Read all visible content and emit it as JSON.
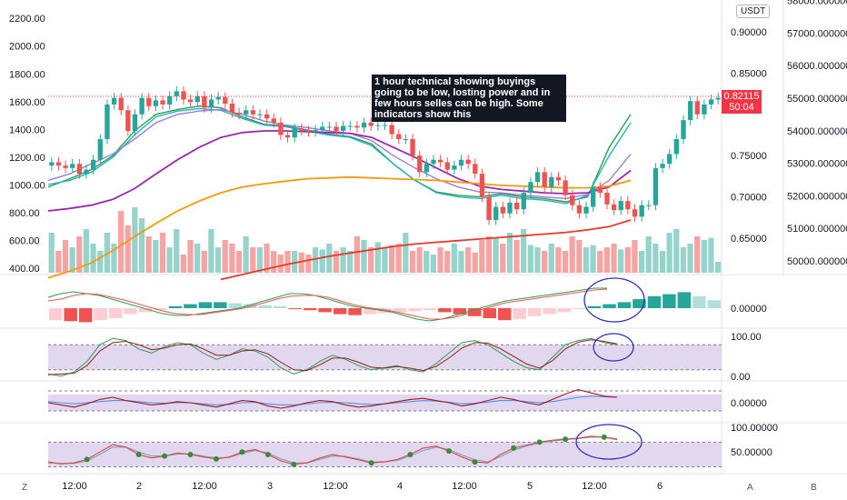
{
  "annotation": {
    "text": "1 hour technical showing buyings going to be low, losting power and in few hours selles can be high. Some indicators show this"
  },
  "currency_badge": "USDT",
  "last_price": {
    "value": "0.82115",
    "countdown": "50:04"
  },
  "bottom_bar": {
    "left_btn": "Z",
    "right_btn_a": "A",
    "right_btn_b": "B"
  },
  "colors": {
    "up": "#26a69a",
    "down": "#ef5350",
    "vol_up": "#95d3cb",
    "vol_down": "#f5a3a3",
    "ma_green": "#2e9e50",
    "ma_cyan": "#22b3c4",
    "ma_lilac": "#9c7cd6",
    "ma_purple": "#9c27b0",
    "ma_orange": "#f59a0c",
    "ma_red": "#e53a2a",
    "band_fill": "#e1d7ee",
    "circle": "#2f2fb8"
  },
  "chart_data": [
    {
      "type": "line",
      "subtype": "candlestick",
      "title": "",
      "x_ticks": [
        "12:00",
        "2",
        "12:00",
        "3",
        "12:00",
        "4",
        "12:00",
        "5",
        "12:00",
        "6"
      ],
      "left_axis": {
        "ticks": [
          400,
          600,
          800,
          1000,
          1200,
          1400,
          1600,
          1800,
          2000,
          2200
        ],
        "labels": [
          "400.00",
          "600.00",
          "800.00",
          "1000.00",
          "1200.00",
          "1400.00",
          "1600.00",
          "1800.00",
          "2000.00",
          "2200.00"
        ],
        "range": [
          380,
          2280
        ]
      },
      "right_axis_price": {
        "ticks": [
          0.65,
          0.7,
          0.75,
          0.85,
          0.9
        ],
        "labels": [
          "0.65000",
          "0.70000",
          "0.75000",
          "0.85000",
          "0.90000"
        ]
      },
      "right_axis_2": {
        "labels": [
          "50000.000000",
          "51000.000000",
          "52000.000000",
          "53000.000000",
          "54000.000000",
          "55000.000000",
          "56000.000000",
          "57000.000000",
          "58000.000000"
        ]
      },
      "price_series": [
        0.742,
        0.738,
        0.735,
        0.74,
        0.728,
        0.733,
        0.745,
        0.77,
        0.812,
        0.82,
        0.805,
        0.78,
        0.8,
        0.82,
        0.81,
        0.817,
        0.812,
        0.822,
        0.828,
        0.818,
        0.815,
        0.822,
        0.808,
        0.818,
        0.821,
        0.813,
        0.802,
        0.8,
        0.805,
        0.8,
        0.8,
        0.795,
        0.79,
        0.775,
        0.772,
        0.783,
        0.78,
        0.779,
        0.781,
        0.785,
        0.785,
        0.78,
        0.786,
        0.786,
        0.784,
        0.79,
        0.786,
        0.787,
        0.787,
        0.776,
        0.77,
        0.77,
        0.75,
        0.73,
        0.74,
        0.745,
        0.742,
        0.733,
        0.738,
        0.745,
        0.74,
        0.728,
        0.7,
        0.672,
        0.688,
        0.68,
        0.693,
        0.685,
        0.705,
        0.718,
        0.73,
        0.712,
        0.724,
        0.72,
        0.702,
        0.69,
        0.68,
        0.688,
        0.712,
        0.705,
        0.691,
        0.684,
        0.695,
        0.685,
        0.676,
        0.69,
        0.69,
        0.735,
        0.74,
        0.752,
        0.77,
        0.793,
        0.816,
        0.8,
        0.812,
        0.818,
        0.82
      ],
      "series": [
        {
          "name": "",
          "values": [
            0.712,
            0.722,
            0.733,
            0.75,
            0.78,
            0.8,
            0.806,
            0.81,
            0.808,
            0.797,
            0.788,
            0.786,
            0.781,
            0.776,
            0.773,
            0.764,
            0.74,
            0.72,
            0.706,
            0.702,
            0.7,
            0.704,
            0.7,
            0.698,
            0.694,
            0.7,
            0.76,
            0.8
          ]
        },
        {
          "name": "",
          "values": [
            0.715,
            0.72,
            0.73,
            0.748,
            0.775,
            0.797,
            0.804,
            0.807,
            0.805,
            0.795,
            0.787,
            0.785,
            0.78,
            0.775,
            0.772,
            0.762,
            0.74,
            0.72,
            0.705,
            0.7,
            0.698,
            0.702,
            0.698,
            0.696,
            0.692,
            0.702,
            0.75,
            0.79
          ]
        },
        {
          "name": "",
          "values": [
            0.72,
            0.728,
            0.74,
            0.752,
            0.77,
            0.79,
            0.8,
            0.804,
            0.806,
            0.8,
            0.792,
            0.787,
            0.784,
            0.78,
            0.777,
            0.768,
            0.75,
            0.735,
            0.722,
            0.712,
            0.706,
            0.705,
            0.702,
            0.7,
            0.698,
            0.703,
            0.72,
            0.752
          ]
        },
        {
          "name": "",
          "values": [
            0.683,
            0.686,
            0.69,
            0.697,
            0.71,
            0.728,
            0.745,
            0.76,
            0.772,
            0.778,
            0.78,
            0.78,
            0.779,
            0.778,
            0.777,
            0.772,
            0.76,
            0.748,
            0.735,
            0.722,
            0.713,
            0.709,
            0.707,
            0.705,
            0.704,
            0.705,
            0.712,
            0.732
          ]
        },
        {
          "name": "",
          "values": [
            0.602,
            0.61,
            0.62,
            0.635,
            0.652,
            0.668,
            0.683,
            0.695,
            0.705,
            0.712,
            0.716,
            0.719,
            0.722,
            0.723,
            0.724,
            0.723,
            0.722,
            0.721,
            0.72,
            0.718,
            0.716,
            0.714,
            0.713,
            0.712,
            0.711,
            0.711,
            0.713,
            0.72
          ]
        },
        {
          "name": "",
          "values": [
            null,
            null,
            null,
            null,
            null,
            null,
            null,
            null,
            0.6,
            0.606,
            0.612,
            0.618,
            0.623,
            0.628,
            0.632,
            0.636,
            0.64,
            0.643,
            0.645,
            0.647,
            0.649,
            0.651,
            0.653,
            0.655,
            0.657,
            0.66,
            0.664,
            0.672
          ]
        }
      ],
      "volume": [
        0.55,
        0.3,
        0.45,
        0.35,
        0.5,
        0.6,
        0.4,
        0.3,
        0.55,
        0.4,
        0.85,
        0.65,
        0.9,
        0.75,
        0.5,
        0.45,
        0.55,
        0.35,
        0.6,
        0.25,
        0.45,
        0.4,
        0.3,
        0.6,
        0.35,
        0.45,
        0.4,
        0.3,
        0.5,
        0.35,
        0.35,
        0.4,
        0.3,
        0.25,
        0.3,
        0.3,
        0.28,
        0.25,
        0.35,
        0.32,
        0.4,
        0.3,
        0.35,
        0.3,
        0.5,
        0.45,
        0.35,
        0.42,
        0.35,
        0.38,
        0.4,
        0.55,
        0.3,
        0.35,
        0.3,
        0.25,
        0.35,
        0.3,
        0.4,
        0.3,
        0.35,
        0.28,
        0.45,
        0.5,
        0.48,
        0.4,
        0.55,
        0.45,
        0.6,
        0.38,
        0.35,
        0.3,
        0.4,
        0.35,
        0.3,
        0.5,
        0.45,
        0.35,
        0.38,
        0.3,
        0.35,
        0.4,
        0.32,
        0.35,
        0.45,
        0.3,
        0.5,
        0.4,
        0.3,
        0.55,
        0.6,
        0.35,
        0.4,
        0.5,
        0.45,
        0.48,
        0.15
      ]
    },
    {
      "type": "bar",
      "subtype": "histogram",
      "title": "",
      "axis_labels": [
        "0.00000"
      ],
      "values": [
        -0.6,
        -0.65,
        -0.7,
        -0.6,
        -0.5,
        -0.3,
        -0.2,
        -0.1,
        0.1,
        0.2,
        0.3,
        0.3,
        0.25,
        0.2,
        0.15,
        0.1,
        -0.05,
        -0.1,
        -0.2,
        -0.3,
        -0.35,
        -0.3,
        -0.25,
        -0.2,
        -0.15,
        -0.1,
        -0.2,
        -0.3,
        -0.4,
        -0.5,
        -0.6,
        -0.55,
        -0.4,
        -0.3,
        -0.2,
        -0.05,
        0.1,
        0.2,
        0.3,
        0.45,
        0.6,
        0.7,
        0.8,
        0.6,
        0.4
      ]
    },
    {
      "type": "line",
      "title": "",
      "axis_labels": [
        "100.00",
        "0.00"
      ],
      "ylim": [
        0,
        100
      ],
      "band": [
        20,
        80
      ],
      "series": [
        {
          "name": "",
          "values": [
            10,
            5,
            15,
            40,
            80,
            95,
            90,
            70,
            60,
            75,
            85,
            80,
            60,
            45,
            55,
            70,
            65,
            50,
            25,
            10,
            20,
            40,
            55,
            45,
            30,
            20,
            25,
            30,
            20,
            15,
            35,
            60,
            85,
            90,
            80,
            60,
            40,
            25,
            20,
            50,
            80,
            90,
            95,
            85,
            80
          ]
        },
        {
          "name": "",
          "values": [
            8,
            10,
            12,
            30,
            65,
            85,
            88,
            80,
            68,
            72,
            80,
            82,
            70,
            55,
            55,
            65,
            68,
            58,
            38,
            20,
            18,
            32,
            48,
            48,
            38,
            26,
            24,
            28,
            24,
            18,
            28,
            48,
            72,
            85,
            84,
            70,
            52,
            34,
            24,
            42,
            70,
            86,
            92,
            88,
            82
          ]
        }
      ]
    },
    {
      "type": "line",
      "title": "",
      "axis_labels": [
        "0.00000"
      ],
      "series": [
        {
          "name": "",
          "values": [
            0,
            -0.2,
            -0.4,
            -0.1,
            0.3,
            0.5,
            0.2,
            0,
            -0.2,
            -0.1,
            0.1,
            0,
            -0.2,
            -0.4,
            -0.1,
            0.2,
            0.1,
            -0.3,
            -0.5,
            -0.3,
            0,
            0.2,
            0.1,
            -0.2,
            -0.4,
            -0.3,
            -0.1,
            0.1,
            0.3,
            0.4,
            0.2,
            0,
            -0.3,
            -0.1,
            0.2,
            0.5,
            0.3,
            0,
            -0.2,
            0.3,
            0.8,
            1.2,
            0.9,
            0.6,
            0.5
          ]
        },
        {
          "name": "",
          "values": [
            0.1,
            0,
            -0.1,
            0,
            0.1,
            0.2,
            0.2,
            0.1,
            0,
            -0.05,
            0,
            0,
            -0.1,
            -0.2,
            -0.15,
            0,
            0.05,
            -0.1,
            -0.2,
            -0.2,
            -0.1,
            0,
            0.05,
            0,
            -0.1,
            -0.15,
            -0.1,
            0,
            0.1,
            0.2,
            0.15,
            0.05,
            -0.1,
            -0.05,
            0.05,
            0.2,
            0.2,
            0.1,
            0,
            0.1,
            0.3,
            0.5,
            0.6,
            0.55,
            0.5
          ]
        }
      ]
    },
    {
      "type": "line",
      "title": "",
      "axis_labels": [
        "100.00000",
        "50.00000"
      ],
      "ylim": [
        20,
        110
      ],
      "band": [
        30,
        80
      ],
      "series": [
        {
          "name": "",
          "values": [
            40,
            36,
            38,
            45,
            60,
            75,
            70,
            55,
            48,
            52,
            58,
            55,
            50,
            46,
            50,
            60,
            65,
            55,
            42,
            35,
            38,
            48,
            55,
            50,
            44,
            38,
            40,
            45,
            55,
            68,
            72,
            62,
            50,
            40,
            38,
            55,
            68,
            74,
            80,
            84,
            86,
            88,
            92,
            90,
            85
          ]
        },
        {
          "name": "",
          "values": [
            38,
            37,
            37,
            42,
            55,
            70,
            70,
            60,
            52,
            52,
            56,
            56,
            52,
            48,
            49,
            57,
            63,
            58,
            46,
            38,
            38,
            45,
            52,
            51,
            46,
            40,
            40,
            43,
            52,
            63,
            70,
            65,
            54,
            44,
            40,
            51,
            64,
            72,
            78,
            82,
            85,
            87,
            90,
            90,
            87
          ]
        }
      ]
    }
  ]
}
